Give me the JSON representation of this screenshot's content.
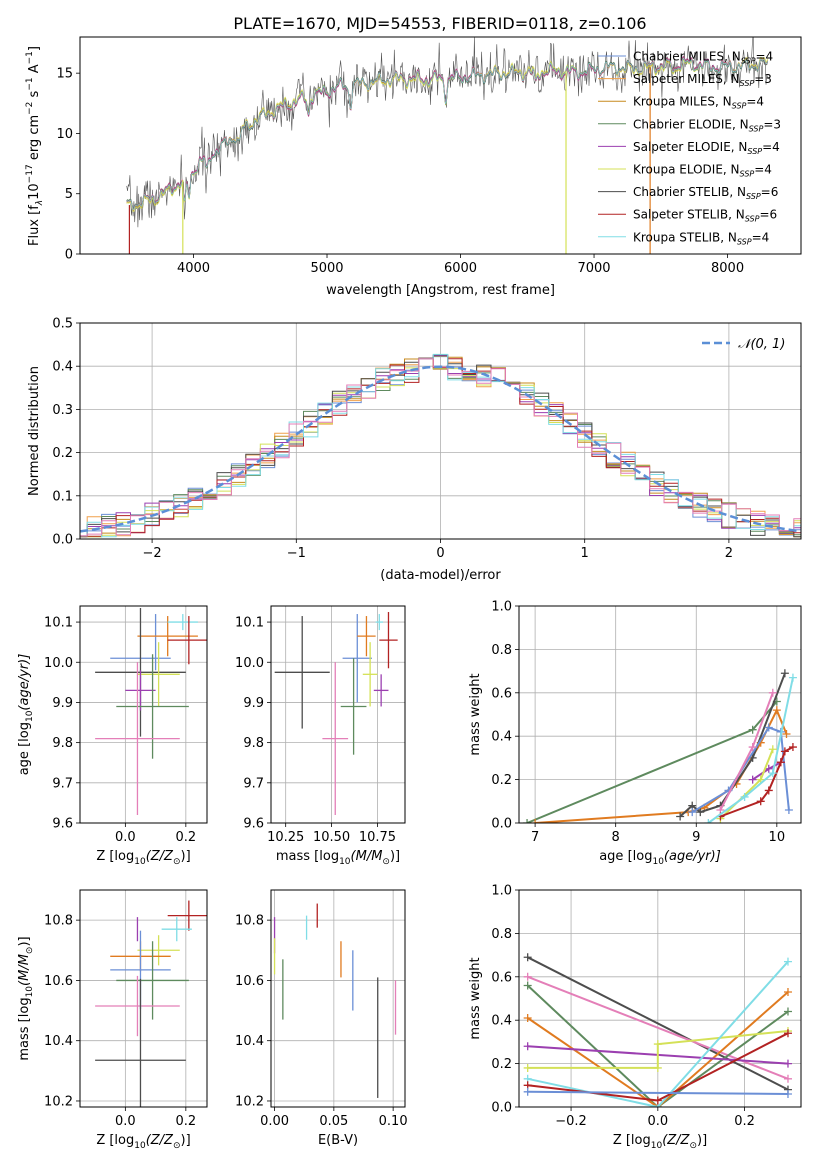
{
  "title": "PLATE=1670, MJD=54553, FIBERID=0118, z=0.106",
  "colors": {
    "c1": "#6b8fd6",
    "c2": "#f0a04b",
    "c3": "#c78a1e",
    "c4": "#5e8a5e",
    "c5": "#9b3fb0",
    "c6": "#d4e157",
    "c7": "#4d4d4d",
    "c8": "#b22222",
    "c9": "#80dde6",
    "orange": "#e07b20",
    "pink": "#e47fb8",
    "grid": "#b0b0b0",
    "norm": "#5b8fd6"
  },
  "chart_data": [
    {
      "id": "spectrum",
      "type": "line",
      "xlabel": "wavelength [Angstrom, rest frame]",
      "ylabel_main": "Flux [f",
      "ylabel_sub": "λ",
      "ylabel_rest": "10",
      "ylabel_exp": "−17",
      "ylabel_units": " erg cm",
      "xlim": [
        3150,
        8550
      ],
      "ylim": [
        0,
        18
      ],
      "xticks": [
        4000,
        5000,
        6000,
        7000,
        8000
      ],
      "yticks": [
        0,
        5,
        10,
        15
      ],
      "legend": [
        {
          "name": "Chabrier MILES, N",
          "sub": "SSP",
          "val": "=4",
          "color": "#6b8fd6"
        },
        {
          "name": "Salpeter MILES, N",
          "sub": "SSP",
          "val": "=3",
          "color": "#f0a04b"
        },
        {
          "name": "Kroupa MILES, N",
          "sub": "SSP",
          "val": "=4",
          "color": "#c78a1e"
        },
        {
          "name": "Chabrier ELODIE, N",
          "sub": "SSP",
          "val": "=3",
          "color": "#5e8a5e"
        },
        {
          "name": "Salpeter ELODIE, N",
          "sub": "SSP",
          "val": "=4",
          "color": "#9b3fb0"
        },
        {
          "name": "Kroupa ELODIE, N",
          "sub": "SSP",
          "val": "=4",
          "color": "#d4e157"
        },
        {
          "name": "Chabrier STELIB, N",
          "sub": "SSP",
          "val": "=6",
          "color": "#4d4d4d"
        },
        {
          "name": "Salpeter STELIB, N",
          "sub": "SSP",
          "val": "=6",
          "color": "#b22222"
        },
        {
          "name": "Kroupa STELIB, N",
          "sub": "SSP",
          "val": "=4",
          "color": "#80dde6"
        }
      ],
      "continuum": [
        [
          3500,
          4.0
        ],
        [
          3700,
          4.6
        ],
        [
          3850,
          5.5
        ],
        [
          3950,
          6.4
        ],
        [
          4050,
          7.6
        ],
        [
          4200,
          8.8
        ],
        [
          4350,
          10.2
        ],
        [
          4500,
          11.3
        ],
        [
          4700,
          12.4
        ],
        [
          4900,
          13.2
        ],
        [
          5100,
          13.9
        ],
        [
          5300,
          14.2
        ],
        [
          5500,
          14.6
        ],
        [
          5700,
          14.5
        ],
        [
          5900,
          14.5
        ],
        [
          6100,
          14.8
        ],
        [
          6300,
          15.0
        ],
        [
          6500,
          15.0
        ],
        [
          6700,
          15.2
        ],
        [
          6900,
          15.1
        ],
        [
          7100,
          15.5
        ],
        [
          7300,
          15.4
        ],
        [
          7500,
          15.6
        ],
        [
          7700,
          15.8
        ],
        [
          7900,
          15.5
        ],
        [
          8100,
          15.6
        ],
        [
          8300,
          15.8
        ]
      ]
    },
    {
      "id": "residuals",
      "type": "histogram",
      "xlabel": "(data-model)/error",
      "ylabel": "Normed distribution",
      "xlim": [
        -2.5,
        2.5
      ],
      "ylim": [
        0,
        0.5
      ],
      "xticks": [
        -2,
        -1,
        0,
        1,
        2
      ],
      "yticks": [
        0.0,
        0.1,
        0.2,
        0.3,
        0.4,
        0.5
      ],
      "ytick_labels": [
        "0.0",
        "0.1",
        "0.2",
        "0.3",
        "0.4",
        "0.5"
      ],
      "xtick_labels": [
        "−2",
        "−1",
        "0",
        "1",
        "2"
      ],
      "bin_width": 0.1,
      "legend_label": "𝒩(0, 1)"
    },
    {
      "id": "age-vs-Z",
      "type": "errorbar",
      "xlabel": "Z [log",
      "xlabel_sub": "10",
      "xlabel_rest": "(Z/Z",
      "xlabel_sun": "⊙",
      "xlabel_end": ")]",
      "ylabel": "age  [log",
      "ylabel_sub": "10",
      "ylabel_rest": "(age/yr)]",
      "xlim": [
        -0.15,
        0.27
      ],
      "ylim": [
        9.6,
        10.14
      ],
      "xticks": [
        0.0,
        0.2
      ],
      "xtick_labels": [
        "0.0",
        "0.2"
      ],
      "yticks": [
        9.6,
        9.7,
        9.8,
        9.9,
        10.0,
        10.1
      ],
      "ytick_labels": [
        "9.6",
        "9.7",
        "9.8",
        "9.9",
        "10.0",
        "10.1"
      ],
      "points": [
        {
          "x": 0.1,
          "xerr": 0.0,
          "y": 10.05,
          "yerr": 0.07,
          "color": "#6b8fd6"
        },
        {
          "x": 0.05,
          "xerr": 0.1,
          "y": 10.01,
          "yerr": 0.0,
          "color": "#6b8fd6"
        },
        {
          "x": 0.14,
          "xerr": 0.1,
          "y": 10.065,
          "yerr": 0.05,
          "color": "#e07b20"
        },
        {
          "x": 0.19,
          "xerr": 0.05,
          "y": 10.1,
          "yerr": 0.02,
          "color": "#80dde6"
        },
        {
          "x": 0.21,
          "xerr": 0.07,
          "y": 10.055,
          "yerr": 0.06,
          "color": "#b22222"
        },
        {
          "x": 0.05,
          "xerr": 0.15,
          "y": 9.975,
          "yerr": 0.16,
          "color": "#4d4d4d"
        },
        {
          "x": 0.11,
          "xerr": 0.07,
          "y": 9.97,
          "yerr": 0.08,
          "color": "#d4e157"
        },
        {
          "x": 0.05,
          "xerr": 0.05,
          "y": 9.93,
          "yerr": 0.05,
          "color": "#9b3fb0"
        },
        {
          "x": 0.09,
          "xerr": 0.12,
          "y": 9.89,
          "yerr": 0.13,
          "color": "#5e8a5e"
        },
        {
          "x": 0.04,
          "xerr": 0.14,
          "y": 9.81,
          "yerr": 0.19,
          "color": "#e47fb8"
        }
      ]
    },
    {
      "id": "age-vs-mass",
      "type": "errorbar",
      "xlabel": "mass [log",
      "xlabel_sub": "10",
      "xlabel_rest": "(M/M",
      "xlabel_sun": "⊙",
      "xlabel_end": ")]",
      "xlim": [
        10.17,
        10.9
      ],
      "ylim": [
        9.6,
        10.14
      ],
      "xticks": [
        10.25,
        10.5,
        10.75
      ],
      "xtick_labels": [
        "10.25",
        "10.50",
        "10.75"
      ],
      "yticks": [
        9.6,
        9.7,
        9.8,
        9.9,
        10.0,
        10.1
      ],
      "ytick_labels": [
        "9.6",
        "9.7",
        "9.8",
        "9.9",
        "10.0",
        "10.1"
      ],
      "points": [
        {
          "x": 10.64,
          "xerr": 0.08,
          "y": 10.01,
          "yerr": 0.11,
          "color": "#6b8fd6"
        },
        {
          "x": 10.69,
          "xerr": 0.05,
          "y": 10.065,
          "yerr": 0.05,
          "color": "#e07b20"
        },
        {
          "x": 10.76,
          "xerr": 0.02,
          "y": 10.1,
          "yerr": 0.02,
          "color": "#80dde6"
        },
        {
          "x": 10.81,
          "xerr": 0.05,
          "y": 10.055,
          "yerr": 0.07,
          "color": "#b22222"
        },
        {
          "x": 10.34,
          "xerr": 0.15,
          "y": 9.975,
          "yerr": 0.14,
          "color": "#4d4d4d"
        },
        {
          "x": 10.71,
          "xerr": 0.04,
          "y": 9.97,
          "yerr": 0.08,
          "color": "#d4e157"
        },
        {
          "x": 10.77,
          "xerr": 0.04,
          "y": 9.93,
          "yerr": 0.04,
          "color": "#9b3fb0"
        },
        {
          "x": 10.62,
          "xerr": 0.07,
          "y": 9.89,
          "yerr": 0.12,
          "color": "#5e8a5e"
        },
        {
          "x": 10.52,
          "xerr": 0.07,
          "y": 9.81,
          "yerr": 0.19,
          "color": "#e47fb8"
        }
      ]
    },
    {
      "id": "weight-vs-age",
      "type": "line",
      "xlabel": "age  [log",
      "xlabel_sub": "10",
      "xlabel_rest": "(age/yr)]",
      "ylabel": "mass weight",
      "xlim": [
        6.8,
        10.3
      ],
      "ylim": [
        0,
        1
      ],
      "xticks": [
        7,
        8,
        9,
        10
      ],
      "xtick_labels": [
        "7",
        "8",
        "9",
        "10"
      ],
      "yticks": [
        0,
        0.2,
        0.4,
        0.6,
        0.8,
        1.0
      ],
      "ytick_labels": [
        "0.0",
        "0.2",
        "0.4",
        "0.6",
        "0.8",
        "1.0"
      ],
      "series": [
        {
          "color": "#5e8a5e",
          "points": [
            [
              6.9,
              0.0
            ],
            [
              9.7,
              0.43
            ],
            [
              10.0,
              0.56
            ]
          ]
        },
        {
          "color": "#e07b20",
          "points": [
            [
              7.0,
              0.0
            ],
            [
              8.9,
              0.05
            ],
            [
              9.1,
              0.07
            ],
            [
              9.5,
              0.18
            ],
            [
              9.8,
              0.37
            ],
            [
              10.0,
              0.52
            ],
            [
              10.12,
              0.41
            ]
          ]
        },
        {
          "color": "#4d4d4d",
          "points": [
            [
              8.8,
              0.03
            ],
            [
              8.95,
              0.08
            ],
            [
              9.05,
              0.05
            ],
            [
              9.3,
              0.08
            ],
            [
              9.7,
              0.3
            ],
            [
              10.1,
              0.69
            ]
          ]
        },
        {
          "color": "#6b8fd6",
          "points": [
            [
              8.95,
              0.05
            ],
            [
              9.4,
              0.15
            ],
            [
              9.9,
              0.44
            ],
            [
              10.05,
              0.42
            ],
            [
              10.15,
              0.06
            ]
          ]
        },
        {
          "color": "#e47fb8",
          "points": [
            [
              9.3,
              0.06
            ],
            [
              9.7,
              0.35
            ],
            [
              9.95,
              0.6
            ]
          ]
        },
        {
          "color": "#9b3fb0",
          "points": [
            [
              9.7,
              0.2
            ],
            [
              9.9,
              0.25
            ],
            [
              10.05,
              0.28
            ]
          ]
        },
        {
          "color": "#d4e157",
          "points": [
            [
              9.3,
              0.02
            ],
            [
              9.8,
              0.2
            ],
            [
              9.95,
              0.34
            ]
          ]
        },
        {
          "color": "#b22222",
          "points": [
            [
              9.3,
              0.03
            ],
            [
              9.8,
              0.1
            ],
            [
              9.9,
              0.15
            ],
            [
              10.05,
              0.28
            ],
            [
              10.1,
              0.33
            ],
            [
              10.2,
              0.35
            ]
          ]
        },
        {
          "color": "#80dde6",
          "points": [
            [
              9.15,
              0.0
            ],
            [
              9.6,
              0.12
            ],
            [
              9.95,
              0.23
            ],
            [
              10.2,
              0.67
            ]
          ]
        }
      ]
    },
    {
      "id": "mass-vs-Z",
      "type": "errorbar",
      "xlabel": "Z [log",
      "xlabel_sub": "10",
      "xlabel_rest": "(Z/Z",
      "xlabel_sun": "⊙",
      "xlabel_end": ")]",
      "ylabel": "mass [log",
      "ylabel_sub": "10",
      "ylabel_rest": "(M/M",
      "ylabel_sun": "⊙",
      "ylabel_end": ")]",
      "xlim": [
        -0.15,
        0.27
      ],
      "ylim": [
        10.18,
        10.9
      ],
      "xticks": [
        0.0,
        0.2
      ],
      "xtick_labels": [
        "0.0",
        "0.2"
      ],
      "yticks": [
        10.2,
        10.4,
        10.6,
        10.8
      ],
      "ytick_labels": [
        "10.2",
        "10.4",
        "10.6",
        "10.8"
      ],
      "points": [
        {
          "x": 0.21,
          "xerr": 0.07,
          "y": 10.815,
          "yerr": 0.05,
          "color": "#b22222"
        },
        {
          "x": 0.17,
          "xerr": 0.05,
          "y": 10.77,
          "yerr": 0.04,
          "color": "#80dde6"
        },
        {
          "x": 0.04,
          "xerr": 0.0,
          "y": 10.77,
          "yerr": 0.04,
          "color": "#9b3fb0"
        },
        {
          "x": 0.11,
          "xerr": 0.07,
          "y": 10.7,
          "yerr": 0.05,
          "color": "#d4e157"
        },
        {
          "x": 0.05,
          "xerr": 0.1,
          "y": 10.68,
          "yerr": 0.05,
          "color": "#e07b20"
        },
        {
          "x": 0.05,
          "xerr": 0.1,
          "y": 10.635,
          "yerr": 0.13,
          "color": "#6b8fd6"
        },
        {
          "x": 0.09,
          "xerr": 0.12,
          "y": 10.6,
          "yerr": 0.13,
          "color": "#5e8a5e"
        },
        {
          "x": 0.04,
          "xerr": 0.14,
          "y": 10.515,
          "yerr": 0.1,
          "color": "#e47fb8"
        },
        {
          "x": 0.05,
          "xerr": 0.15,
          "y": 10.335,
          "yerr": 0.27,
          "color": "#4d4d4d"
        }
      ]
    },
    {
      "id": "mass-vs-ebv",
      "type": "errorbar",
      "xlabel": "E(B-V)",
      "xlim": [
        -0.003,
        0.11
      ],
      "ylim": [
        10.18,
        10.9
      ],
      "xticks": [
        0.0,
        0.05,
        0.1
      ],
      "xtick_labels": [
        "0.00",
        "0.05",
        "0.10"
      ],
      "yticks": [
        10.2,
        10.4,
        10.6,
        10.8
      ],
      "ytick_labels": [
        "10.2",
        "10.4",
        "10.6",
        "10.8"
      ],
      "points": [
        {
          "x": 0.0,
          "y": 10.75,
          "yerr": 0.06,
          "color": "#9b3fb0"
        },
        {
          "x": 0.0,
          "y": 10.68,
          "yerr": 0.06,
          "color": "#d4e157"
        },
        {
          "x": 0.007,
          "y": 10.57,
          "yerr": 0.1,
          "color": "#5e8a5e"
        },
        {
          "x": 0.027,
          "y": 10.775,
          "yerr": 0.04,
          "color": "#80dde6"
        },
        {
          "x": 0.036,
          "y": 10.815,
          "yerr": 0.04,
          "color": "#b22222"
        },
        {
          "x": 0.056,
          "y": 10.67,
          "yerr": 0.06,
          "color": "#e07b20"
        },
        {
          "x": 0.066,
          "y": 10.6,
          "yerr": 0.1,
          "color": "#6b8fd6"
        },
        {
          "x": 0.087,
          "y": 10.41,
          "yerr": 0.2,
          "color": "#4d4d4d"
        },
        {
          "x": 0.102,
          "y": 10.51,
          "yerr": 0.09,
          "color": "#e47fb8"
        }
      ]
    },
    {
      "id": "weight-vs-Z",
      "type": "line",
      "xlabel": "Z [log",
      "xlabel_sub": "10",
      "xlabel_rest": "(Z/Z",
      "xlabel_sun": "⊙",
      "xlabel_end": ")]",
      "ylabel": "mass weight",
      "xlim": [
        -0.32,
        0.33
      ],
      "ylim": [
        0,
        1
      ],
      "xticks": [
        -0.2,
        0.0,
        0.2
      ],
      "xtick_labels": [
        "−0.2",
        "0.0",
        "0.2"
      ],
      "yticks": [
        0,
        0.2,
        0.4,
        0.6,
        0.8,
        1.0
      ],
      "ytick_labels": [
        "0.0",
        "0.2",
        "0.4",
        "0.6",
        "0.8",
        "1.0"
      ],
      "series": [
        {
          "color": "#4d4d4d",
          "points": [
            [
              -0.3,
              0.69
            ],
            [
              0.3,
              0.08
            ]
          ]
        },
        {
          "color": "#e47fb8",
          "points": [
            [
              -0.3,
              0.6
            ],
            [
              0.3,
              0.13
            ]
          ]
        },
        {
          "color": "#5e8a5e",
          "points": [
            [
              -0.3,
              0.56
            ],
            [
              0.0,
              0.0
            ],
            [
              0.3,
              0.44
            ]
          ]
        },
        {
          "color": "#e07b20",
          "points": [
            [
              -0.3,
              0.41
            ],
            [
              0.0,
              0.0
            ],
            [
              0.3,
              0.53
            ]
          ]
        },
        {
          "color": "#9b3fb0",
          "points": [
            [
              -0.3,
              0.28
            ],
            [
              0.3,
              0.2
            ]
          ]
        },
        {
          "color": "#d4e157",
          "points": [
            [
              -0.3,
              0.18
            ],
            [
              0.0,
              0.18
            ],
            [
              0.0,
              0.29
            ],
            [
              0.3,
              0.35
            ]
          ]
        },
        {
          "color": "#80dde6",
          "points": [
            [
              -0.3,
              0.13
            ],
            [
              0.0,
              0.0
            ],
            [
              0.3,
              0.67
            ]
          ]
        },
        {
          "color": "#b22222",
          "points": [
            [
              -0.3,
              0.1
            ],
            [
              0.0,
              0.03
            ],
            [
              0.3,
              0.34
            ]
          ]
        },
        {
          "color": "#6b8fd6",
          "points": [
            [
              -0.3,
              0.07
            ],
            [
              0.3,
              0.06
            ]
          ]
        }
      ]
    }
  ]
}
